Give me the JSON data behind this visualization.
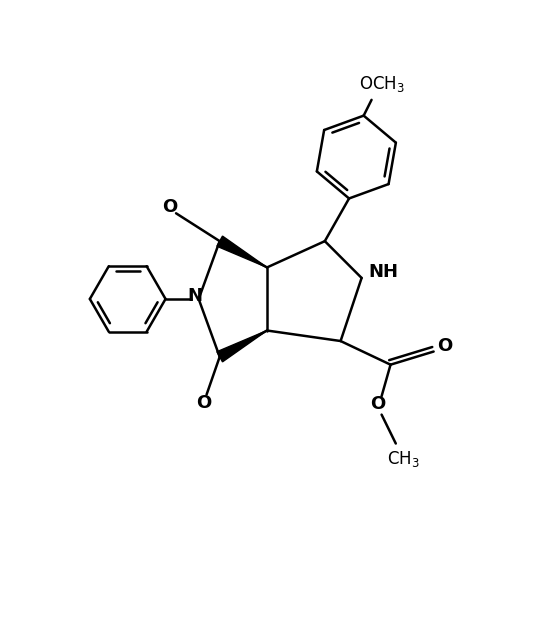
{
  "bg_color": "#ffffff",
  "line_color": "#000000",
  "line_width": 1.8,
  "fig_width": 5.34,
  "fig_height": 6.4,
  "dpi": 100,
  "xlim": [
    0,
    10
  ],
  "ylim": [
    0,
    12
  ]
}
